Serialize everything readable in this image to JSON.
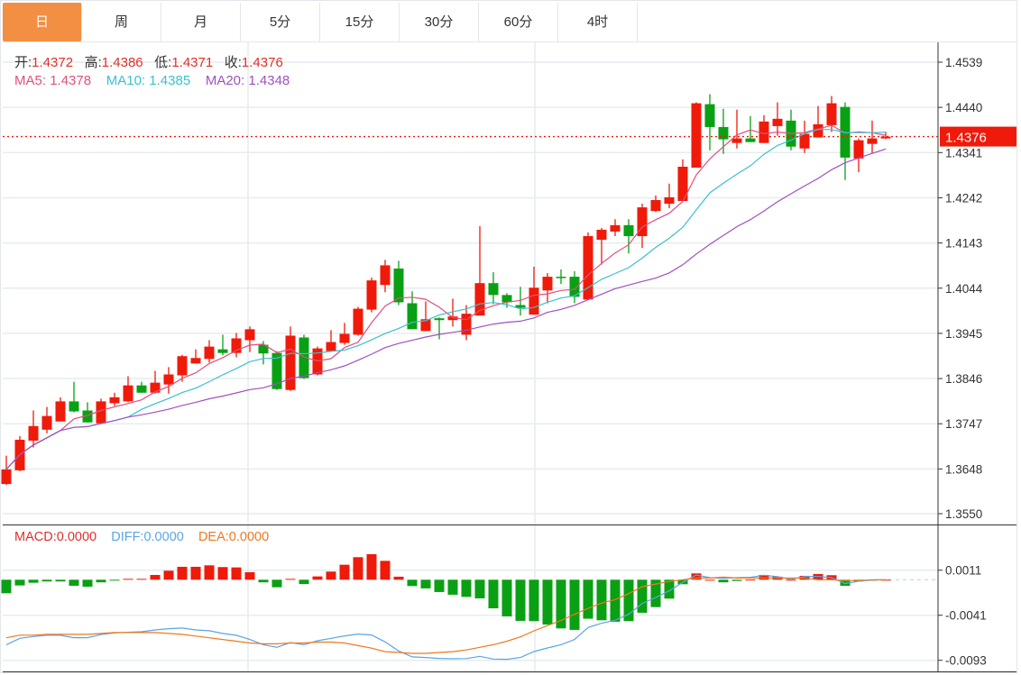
{
  "tabs": [
    {
      "label": "日",
      "active": true
    },
    {
      "label": "周"
    },
    {
      "label": "月"
    },
    {
      "label": "5分"
    },
    {
      "label": "15分"
    },
    {
      "label": "30分"
    },
    {
      "label": "60分"
    },
    {
      "label": "4时"
    }
  ],
  "ohlc_legend": {
    "open_label": "开:",
    "open": "1.4372",
    "high_label": "高:",
    "high": "1.4386",
    "low_label": "低:",
    "low": "1.4371",
    "close_label": "收:",
    "close": "1.4376"
  },
  "ma_legend": {
    "ma5_label": "MA5:",
    "ma5": "1.4378",
    "ma10_label": "MA10:",
    "ma10": "1.4385",
    "ma20_label": "MA20:",
    "ma20": "1.4348"
  },
  "macd_legend": {
    "macd_label": "MACD:",
    "macd": "0.0000",
    "diff_label": "DIFF:",
    "diff": "0.0000",
    "dea_label": "DEA:",
    "dea": "0.0000"
  },
  "colors": {
    "up": "#f01a0a",
    "down": "#0aa014",
    "ma5": "#e0507d",
    "ma10": "#3cc0d0",
    "ma20": "#a050c0",
    "diff": "#5aa5e6",
    "dea": "#f07820",
    "active_tab": "#f38f42",
    "last_price": "#f01a0a"
  },
  "chart_data": [
    {
      "type": "candlestick",
      "title": "",
      "ylim": [
        1.355,
        1.4539
      ],
      "y_ticks": [
        "1.4539",
        "1.4440",
        "1.4341",
        "1.4242",
        "1.4143",
        "1.4044",
        "1.3945",
        "1.3846",
        "1.3747",
        "1.3648",
        "1.3550"
      ],
      "last_price_label": "1.4376",
      "last_price": 1.4376,
      "ma_periods": [
        5,
        10,
        20
      ],
      "candles_ohlc_note": "each candle [open, close, high, low]",
      "candles": [
        [
          1.3615,
          1.3647,
          1.3677,
          1.3613
        ],
        [
          1.3645,
          1.3712,
          1.372,
          1.3643
        ],
        [
          1.371,
          1.3742,
          1.3776,
          1.3695
        ],
        [
          1.3734,
          1.3764,
          1.3784,
          1.3726
        ],
        [
          1.3752,
          1.3796,
          1.3805,
          1.3752
        ],
        [
          1.3796,
          1.3774,
          1.3839,
          1.3772
        ],
        [
          1.3776,
          1.375,
          1.3794,
          1.375
        ],
        [
          1.3748,
          1.3796,
          1.3802,
          1.3748
        ],
        [
          1.3792,
          1.3805,
          1.3815,
          1.3786
        ],
        [
          1.3796,
          1.3831,
          1.3851,
          1.3794
        ],
        [
          1.3831,
          1.3815,
          1.3839,
          1.3815
        ],
        [
          1.3815,
          1.3837,
          1.3863,
          1.3813
        ],
        [
          1.3833,
          1.3855,
          1.3871,
          1.3813
        ],
        [
          1.3853,
          1.3895,
          1.3898,
          1.3839
        ],
        [
          1.3879,
          1.3891,
          1.391,
          1.3879
        ],
        [
          1.3889,
          1.3916,
          1.393,
          1.3881
        ],
        [
          1.391,
          1.3902,
          1.3942,
          1.3897
        ],
        [
          1.3902,
          1.3934,
          1.3946,
          1.3893
        ],
        [
          1.393,
          1.3954,
          1.396,
          1.3904
        ],
        [
          1.392,
          1.3901,
          1.3928,
          1.3877
        ],
        [
          1.3902,
          1.3823,
          1.3906,
          1.3821
        ],
        [
          1.3821,
          1.394,
          1.396,
          1.3819
        ],
        [
          1.3936,
          1.3847,
          1.3942,
          1.3845
        ],
        [
          1.3855,
          1.3912,
          1.3916,
          1.3853
        ],
        [
          1.3906,
          1.3926,
          1.3952,
          1.3906
        ],
        [
          1.3924,
          1.3944,
          1.3968,
          1.392
        ],
        [
          1.3942,
          1.3999,
          1.4003,
          1.394
        ],
        [
          1.3997,
          1.4061,
          1.4067,
          1.3991
        ],
        [
          1.4051,
          1.4094,
          1.4106,
          1.4035
        ],
        [
          1.4087,
          1.4013,
          1.4104,
          1.4007
        ],
        [
          1.4011,
          1.3954,
          1.4037,
          1.3954
        ],
        [
          1.395,
          1.3976,
          1.4015,
          1.395
        ],
        [
          1.3978,
          1.3974,
          1.398,
          1.3932
        ],
        [
          1.3974,
          1.3982,
          1.4021,
          1.396
        ],
        [
          1.3942,
          1.3988,
          1.4007,
          1.393
        ],
        [
          1.3984,
          1.4055,
          1.418,
          1.3984
        ],
        [
          1.4055,
          1.4029,
          1.4079,
          1.4009
        ],
        [
          1.4029,
          1.4013,
          1.4033,
          1.4001
        ],
        [
          1.4007,
          1.4001,
          1.4047,
          1.3984
        ],
        [
          1.3986,
          1.4045,
          1.4091,
          1.3986
        ],
        [
          1.4039,
          1.4069,
          1.4077,
          1.4011
        ],
        [
          1.4069,
          1.4067,
          1.4085,
          1.4053
        ],
        [
          1.4069,
          1.4025,
          1.4081,
          1.4011
        ],
        [
          1.4019,
          1.4158,
          1.4166,
          1.4019
        ],
        [
          1.415,
          1.4172,
          1.4176,
          1.4096
        ],
        [
          1.4168,
          1.4182,
          1.4195,
          1.4158
        ],
        [
          1.4182,
          1.4158,
          1.4195,
          1.412
        ],
        [
          1.4158,
          1.4221,
          1.4229,
          1.4132
        ],
        [
          1.4213,
          1.4237,
          1.4247,
          1.4211
        ],
        [
          1.4229,
          1.4243,
          1.4273,
          1.4219
        ],
        [
          1.4235,
          1.431,
          1.4326,
          1.4235
        ],
        [
          1.4308,
          1.4449,
          1.4451,
          1.4308
        ],
        [
          1.4447,
          1.4397,
          1.4469,
          1.4346
        ],
        [
          1.4397,
          1.437,
          1.4437,
          1.4338
        ],
        [
          1.4362,
          1.4372,
          1.4435,
          1.435
        ],
        [
          1.4372,
          1.4364,
          1.4421,
          1.4364
        ],
        [
          1.4362,
          1.4409,
          1.4423,
          1.4362
        ],
        [
          1.4399,
          1.4415,
          1.4451,
          1.4378
        ],
        [
          1.4411,
          1.4354,
          1.4435,
          1.4346
        ],
        [
          1.435,
          1.4382,
          1.4411,
          1.434
        ],
        [
          1.4374,
          1.4403,
          1.4443,
          1.4374
        ],
        [
          1.4401,
          1.4449,
          1.4465,
          1.4386
        ],
        [
          1.4441,
          1.433,
          1.4451,
          1.4281
        ],
        [
          1.4328,
          1.4368,
          1.4372,
          1.4298
        ],
        [
          1.436,
          1.4372,
          1.4411,
          1.434
        ],
        [
          1.4372,
          1.4376,
          1.4386,
          1.4371
        ]
      ]
    },
    {
      "type": "macd",
      "ylim": [
        -0.0093,
        0.0011
      ],
      "y_ticks": [
        "0.0011",
        "-0.0041",
        "-0.0093"
      ],
      "macd": [
        -0.00156,
        -0.00066,
        -0.00035,
        -0.0002,
        -0.0002,
        -0.0007,
        -0.0008,
        -0.0003,
        -0.0001,
        0.0001,
        0.0001,
        0.00055,
        0.00104,
        0.00149,
        0.00149,
        0.00166,
        0.00146,
        0.00142,
        0.00087,
        -0.0003,
        -0.00087,
        0.0001,
        -0.0005,
        0.00038,
        0.00094,
        0.00173,
        0.0026,
        0.00295,
        0.00218,
        0.00035,
        -0.00073,
        -0.001,
        -0.00142,
        -0.00173,
        -0.00198,
        -0.00215,
        -0.0033,
        -0.00423,
        -0.00475,
        -0.00478,
        -0.00517,
        -0.00562,
        -0.00579,
        -0.0045,
        -0.00468,
        -0.00485,
        -0.00478,
        -0.00381,
        -0.00316,
        -0.00218,
        -0.00052,
        0.00073,
        0.0,
        -0.0003,
        -0.00014,
        3e-05,
        0.00055,
        0.00035,
        0.0,
        0.00045,
        0.00066,
        0.00052,
        -0.0007,
        -0.0002,
        -0.0001,
        0.0
      ],
      "diff": [
        -0.0075,
        -0.00676,
        -0.00655,
        -0.00641,
        -0.00641,
        -0.00669,
        -0.00669,
        -0.00631,
        -0.00614,
        -0.00607,
        -0.006,
        -0.00579,
        -0.00565,
        -0.00558,
        -0.00579,
        -0.00589,
        -0.0062,
        -0.00641,
        -0.0069,
        -0.0075,
        -0.0078,
        -0.00725,
        -0.0075,
        -0.00704,
        -0.00676,
        -0.00648,
        -0.00627,
        -0.00638,
        -0.00718,
        -0.00822,
        -0.0089,
        -0.00898,
        -0.00908,
        -0.00912,
        -0.0091,
        -0.00884,
        -0.00915,
        -0.00919,
        -0.00898,
        -0.00829,
        -0.00787,
        -0.0075,
        -0.0069,
        -0.00551,
        -0.00503,
        -0.00468,
        -0.00399,
        -0.00274,
        -0.00205,
        -0.00128,
        -0.0003,
        0.00055,
        0.00024,
        0.00017,
        0.00024,
        0.00028,
        0.00052,
        0.00035,
        3e-05,
        0.00038,
        0.00038,
        0.00024,
        -0.00045,
        -0.00017,
        -3e-05,
        0.0
      ],
      "dea": [
        -0.0067,
        -0.0064,
        -0.0064,
        -0.0063,
        -0.0063,
        -0.0063,
        -0.0063,
        -0.0062,
        -0.0061,
        -0.0061,
        -0.0061,
        -0.0061,
        -0.0062,
        -0.0063,
        -0.0065,
        -0.0067,
        -0.0069,
        -0.0071,
        -0.0073,
        -0.0074,
        -0.0074,
        -0.0073,
        -0.0073,
        -0.0072,
        -0.0072,
        -0.0073,
        -0.0076,
        -0.0079,
        -0.0083,
        -0.0084,
        -0.0085,
        -0.0085,
        -0.0084,
        -0.0083,
        -0.0081,
        -0.0078,
        -0.0075,
        -0.0071,
        -0.0066,
        -0.0059,
        -0.0053,
        -0.0047,
        -0.004,
        -0.0033,
        -0.0027,
        -0.0023,
        -0.0016,
        -0.0008,
        -0.0005,
        -0.0002,
        0.0,
        0.0002,
        0.0002,
        0.0003,
        0.0002,
        0.0002,
        0.0002,
        0.0002,
        0.0002,
        0.0002,
        0.0,
        0.0,
        -0.0001,
        -0.0001,
        0.0,
        0.0
      ]
    }
  ]
}
